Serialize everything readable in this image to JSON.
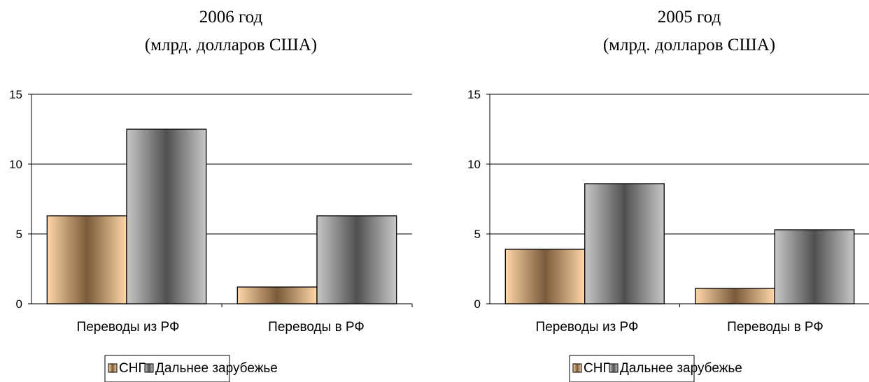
{
  "colors": {
    "cis_light": "#ffd7a8",
    "cis_dark": "#7a5a3a",
    "far_light": "#c8c8c8",
    "far_dark": "#505050",
    "gridline": "#000000"
  },
  "chart_data": [
    {
      "type": "bar",
      "title_line1": "2006 год",
      "title_line2": "(млрд. долларов США)",
      "categories": [
        "Переводы из РФ",
        "Переводы в РФ"
      ],
      "series": [
        {
          "name": "СНГ",
          "values": [
            6.3,
            1.2
          ]
        },
        {
          "name": "Дальнее зарубежье",
          "values": [
            12.5,
            6.3
          ]
        }
      ],
      "yticks": [
        0,
        5,
        10,
        15
      ],
      "ylim": [
        0,
        15
      ],
      "grid": true,
      "legend": "bottom"
    },
    {
      "type": "bar",
      "title_line1": "2005 год",
      "title_line2": "(млрд. долларов США)",
      "categories": [
        "Переводы из РФ",
        "Переводы в РФ"
      ],
      "series": [
        {
          "name": "СНГ",
          "values": [
            3.9,
            1.1
          ]
        },
        {
          "name": "Дальнее зарубежье",
          "values": [
            8.6,
            5.3
          ]
        }
      ],
      "yticks": [
        0,
        5,
        10,
        15
      ],
      "ylim": [
        0,
        15
      ],
      "grid": true,
      "legend": "bottom"
    }
  ]
}
